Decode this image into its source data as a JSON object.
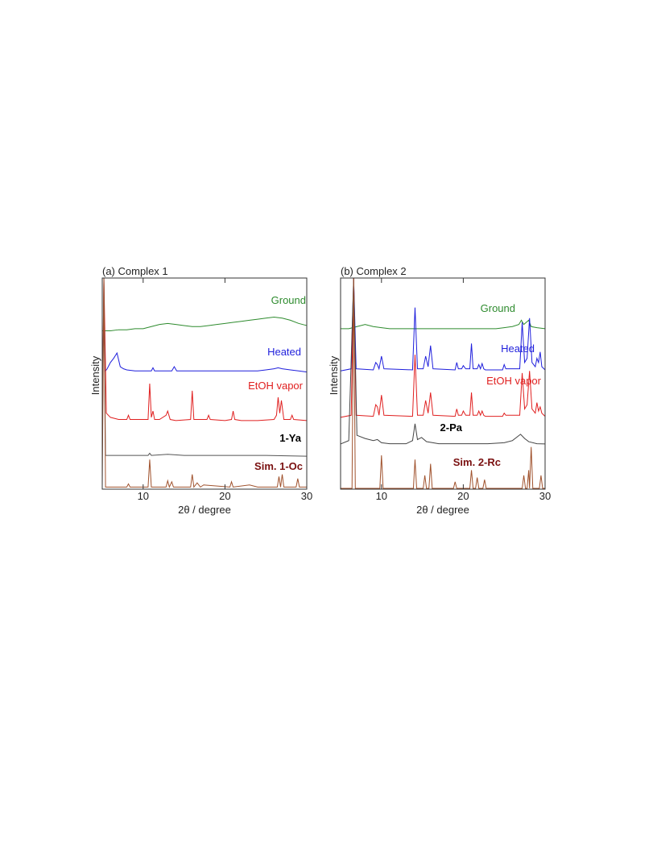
{
  "chart_data": [
    {
      "type": "line",
      "title": "(a) Complex 1",
      "x_label": "2θ / degree",
      "y_label": "Intensity",
      "xlim": [
        5,
        30
      ],
      "xticks": [
        10,
        20,
        30
      ],
      "ylim": [
        0,
        100
      ],
      "series": [
        {
          "name": "Ground",
          "color": "#2e8b2e",
          "label_color": "#2e8b2e",
          "x": [
            5,
            6,
            7,
            8,
            9,
            10,
            11,
            12,
            13,
            14,
            15,
            16,
            17,
            18,
            19,
            20,
            21,
            22,
            23,
            24,
            25,
            26,
            27,
            28,
            29,
            30
          ],
          "values": [
            75,
            75,
            75.5,
            75.5,
            76,
            76,
            77,
            78,
            78.5,
            78,
            77.5,
            77,
            77,
            77.5,
            78,
            78.5,
            79,
            79.5,
            80,
            80.5,
            81,
            81.5,
            81,
            80,
            78.5,
            77.5
          ]
        },
        {
          "name": "Heated",
          "color": "#1f1fdc",
          "label_color": "#1f1fdc",
          "x": [
            5,
            5.2,
            5.4,
            5.6,
            6,
            6.4,
            6.8,
            7.2,
            7.6,
            8,
            9,
            10,
            11,
            11.2,
            11.4,
            12,
            13.5,
            13.8,
            14.1,
            15,
            16,
            17,
            18,
            19,
            20,
            21,
            22,
            23,
            24,
            25,
            26,
            26.5,
            27,
            28,
            29,
            30
          ],
          "values": [
            56,
            78,
            56,
            57,
            60,
            62,
            64.5,
            58,
            57,
            56.5,
            56,
            56,
            56,
            57.5,
            56,
            56,
            56,
            58,
            56,
            56,
            56,
            56,
            56,
            56,
            56,
            56,
            56,
            56,
            56,
            56.5,
            57,
            57.5,
            57,
            56.5,
            56,
            55.5
          ]
        },
        {
          "name": "EtOH vapor",
          "color": "#e02020",
          "label_color": "#e02020",
          "x": [
            5,
            5.2,
            5.5,
            6,
            7,
            8,
            8.2,
            8.4,
            10,
            10.6,
            10.8,
            11,
            11.2,
            11.4,
            12,
            12.8,
            13,
            13.3,
            14,
            15.8,
            16,
            16.2,
            17,
            17.8,
            18,
            18.2,
            20,
            20.8,
            21,
            21.2,
            22,
            24,
            26,
            26.3,
            26.5,
            26.7,
            26.9,
            27.2,
            28,
            28.2,
            28.4,
            30
          ],
          "values": [
            34,
            100,
            36,
            34,
            33,
            33,
            35,
            33,
            33,
            33,
            50,
            34,
            37,
            33,
            33,
            35,
            37,
            33,
            32.5,
            33,
            46.6,
            33,
            33,
            33,
            35,
            33,
            32.5,
            33,
            37,
            33,
            32.5,
            32.5,
            33,
            35,
            43.5,
            36,
            42,
            33,
            33,
            35,
            33,
            32.5
          ]
        },
        {
          "name": "1-Ya",
          "color": "#555555",
          "label_color": "#000000",
          "label_bold": true,
          "x": [
            5,
            5.2,
            5.4,
            7,
            9,
            10.6,
            10.8,
            11,
            13,
            15,
            20,
            25,
            30
          ],
          "values": [
            15.6,
            100,
            16,
            16,
            16,
            16,
            17,
            16,
            16.5,
            16,
            16,
            16,
            15.6
          ]
        },
        {
          "name": "Sim. 1-Oc",
          "color": "#a0522d",
          "label_color": "#7a1010",
          "label_bold": true,
          "x": [
            5,
            5.2,
            5.4,
            8,
            8.2,
            8.4,
            10.6,
            10.8,
            11,
            12.8,
            13,
            13.2,
            13.5,
            13.7,
            15.8,
            16,
            16.2,
            16.6,
            17,
            17.4,
            20.6,
            20.8,
            21,
            23,
            24,
            26.4,
            26.6,
            26.8,
            27,
            27.2,
            27.4,
            28.7,
            28.9,
            29.1,
            30
          ],
          "values": [
            1,
            100,
            1,
            1,
            2.5,
            1,
            1,
            14,
            1,
            1,
            4,
            1,
            3.5,
            1,
            1,
            7,
            1,
            3,
            1,
            2,
            1,
            3.5,
            1,
            2,
            1,
            1,
            6,
            1,
            7,
            1,
            1,
            1,
            5,
            1,
            1
          ]
        }
      ]
    },
    {
      "type": "line",
      "title": "(b) Complex 2",
      "x_label": "2θ / degree",
      "y_label": "Intensity",
      "xlim": [
        5,
        30
      ],
      "xticks": [
        10,
        20,
        30
      ],
      "ylim": [
        0,
        100
      ],
      "series": [
        {
          "name": "Ground",
          "color": "#2e8b2e",
          "label_color": "#2e8b2e",
          "x": [
            5,
            6,
            7,
            8,
            9,
            10,
            11,
            12,
            14,
            16,
            18,
            20,
            22,
            24,
            25,
            26,
            26.8,
            27.1,
            27.4,
            27.7,
            28,
            28.3,
            29,
            30
          ],
          "values": [
            76,
            76,
            77,
            78,
            77,
            76.5,
            76,
            76,
            76,
            76,
            76,
            76,
            76,
            76,
            76.5,
            77,
            78,
            80,
            78,
            79,
            80,
            77,
            76.5,
            76
          ]
        },
        {
          "name": "Heated",
          "color": "#1f1fdc",
          "label_color": "#1f1fdc",
          "x": [
            5,
            6.3,
            6.6,
            6.9,
            9,
            9.3,
            9.5,
            9.7,
            10,
            10.3,
            13.8,
            14.1,
            14.4,
            15.1,
            15.4,
            15.7,
            16,
            16.3,
            19,
            19.2,
            19.4,
            19.8,
            20,
            20.3,
            20.8,
            21,
            21.2,
            21.7,
            21.9,
            22.1,
            22.3,
            22.5,
            22.7,
            24.8,
            25,
            25.2,
            26.9,
            27.2,
            27.5,
            27.8,
            28.1,
            28.4,
            28.8,
            29,
            29.2,
            29.4,
            29.6,
            30
          ],
          "values": [
            56,
            57,
            100,
            57,
            56.5,
            60,
            59,
            57,
            63,
            57,
            56.5,
            86,
            57,
            57,
            63,
            58,
            68,
            57,
            56.5,
            60,
            57,
            57,
            58.5,
            57,
            57,
            69,
            57,
            57,
            59,
            57,
            59.5,
            57,
            56.5,
            56.5,
            59,
            57,
            57,
            79,
            60,
            62,
            81,
            60,
            58,
            62,
            60,
            65,
            58,
            56.5
          ]
        },
        {
          "name": "EtOH vapor",
          "color": "#e02020",
          "label_color": "#e02020",
          "x": [
            5,
            6.3,
            6.6,
            6.9,
            9,
            9.3,
            9.5,
            9.7,
            10,
            10.3,
            13.8,
            14.1,
            14.4,
            15.1,
            15.4,
            15.7,
            16,
            16.3,
            19,
            19.2,
            19.4,
            19.8,
            20,
            20.3,
            20.8,
            21,
            21.2,
            21.7,
            21.9,
            22.1,
            22.3,
            22.5,
            22.7,
            24.8,
            25,
            25.2,
            26.9,
            27.2,
            27.5,
            27.8,
            28.1,
            28.4,
            28.8,
            29,
            29.2,
            29.4,
            29.6,
            30
          ],
          "values": [
            34,
            35,
            100,
            35,
            34.5,
            40,
            39,
            35,
            44.6,
            35,
            34.5,
            63.7,
            35,
            35,
            42,
            36,
            45.8,
            35,
            34.5,
            38,
            35,
            35,
            37,
            35,
            35,
            45.8,
            35,
            35,
            37,
            35,
            37,
            35,
            34.5,
            34.5,
            36,
            35,
            35,
            55,
            38,
            40,
            56,
            38,
            36,
            41,
            37,
            39,
            36,
            34.5
          ]
        },
        {
          "name": "2-Pa",
          "color": "#444444",
          "label_color": "#000000",
          "label_bold": true,
          "x": [
            5,
            6,
            6.6,
            7,
            8,
            9,
            9.5,
            10,
            11,
            12,
            13,
            13.8,
            14.1,
            14.4,
            14.9,
            15.5,
            17,
            19,
            21,
            23,
            25,
            26,
            27,
            27.5,
            28,
            29,
            30
          ],
          "values": [
            21.4,
            23,
            100,
            25.5,
            24,
            23,
            23.5,
            22,
            21.5,
            21.5,
            21.5,
            23,
            31,
            23.5,
            24.5,
            22.5,
            21.5,
            21.5,
            21.5,
            21.5,
            22,
            23,
            26,
            24,
            22.5,
            21.5,
            21.4
          ]
        },
        {
          "name": "Sim. 2-Rc",
          "color": "#a0522d",
          "label_color": "#7a1010",
          "label_bold": true,
          "x": [
            5,
            6.4,
            6.6,
            6.8,
            9.8,
            10,
            10.2,
            13.9,
            14.1,
            14.3,
            15.1,
            15.3,
            15.5,
            15.8,
            16,
            16.2,
            18.8,
            19,
            19.2,
            20.8,
            21,
            21.2,
            21.5,
            21.7,
            21.9,
            22.4,
            22.6,
            22.8,
            27.2,
            27.4,
            27.6,
            27.8,
            28,
            28.1,
            28.3,
            28.5,
            29.3,
            29.5,
            29.7,
            30
          ],
          "values": [
            0.4,
            0.4,
            100,
            0.4,
            0.4,
            16,
            0.4,
            0.4,
            14,
            0.4,
            0.4,
            6.5,
            0.4,
            0.4,
            12,
            0.4,
            0.4,
            3.5,
            0.4,
            0.4,
            9,
            0.4,
            0.4,
            5.5,
            0.4,
            0.4,
            4.5,
            0.4,
            0.4,
            6.5,
            0.4,
            0.4,
            9,
            0.4,
            20,
            0.4,
            0.4,
            6.5,
            0.4,
            0.4
          ]
        }
      ]
    }
  ]
}
